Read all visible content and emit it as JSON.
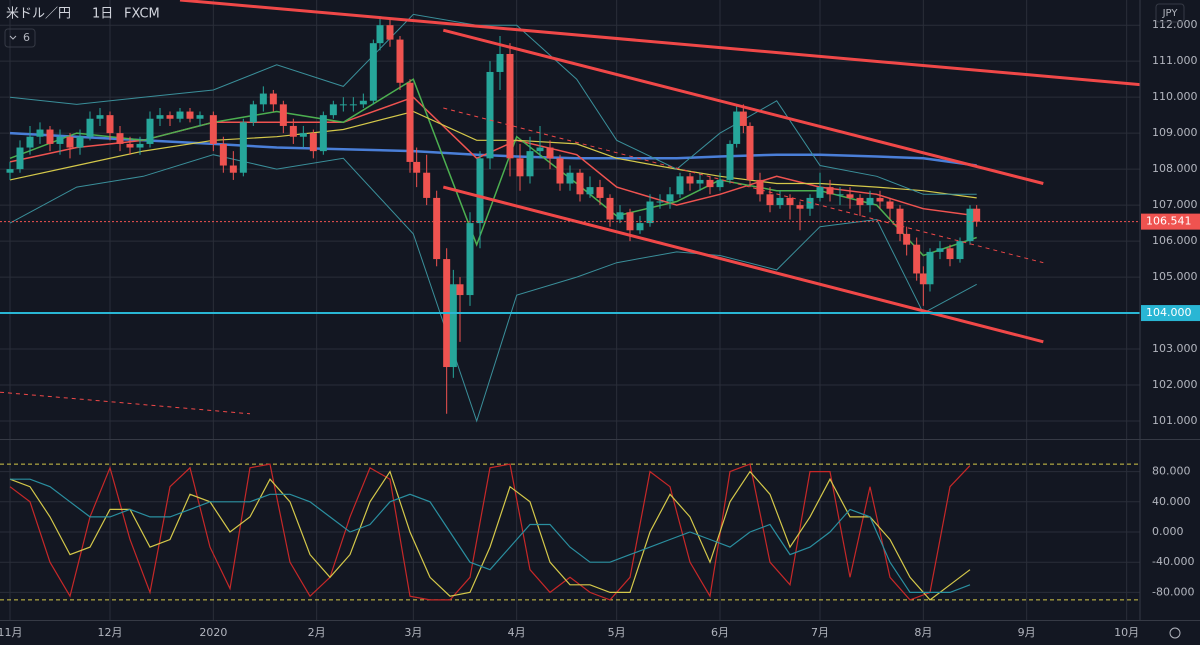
{
  "chart_data": {
    "type": "candlestick",
    "title": "米ドル／円",
    "interval": "1日",
    "source": "FXCM",
    "badge": "6",
    "currency": "JPY",
    "xlim": [
      -3,
      339
    ],
    "xticks": [
      {
        "value": 0,
        "label": "11月"
      },
      {
        "value": 30,
        "label": "12月"
      },
      {
        "value": 61,
        "label": "2020"
      },
      {
        "value": 92,
        "label": "2月"
      },
      {
        "value": 121,
        "label": "3月"
      },
      {
        "value": 152,
        "label": "4月"
      },
      {
        "value": 182,
        "label": "5月"
      },
      {
        "value": 213,
        "label": "6月"
      },
      {
        "value": 243,
        "label": "7月"
      },
      {
        "value": 274,
        "label": "8月"
      },
      {
        "value": 305,
        "label": "9月"
      },
      {
        "value": 335,
        "label": "10月"
      }
    ],
    "ylim": [
      100.5,
      112.7
    ],
    "yticks": [
      {
        "value": 101,
        "label": "101.000"
      },
      {
        "value": 102,
        "label": "102.000"
      },
      {
        "value": 103,
        "label": "103.000"
      },
      {
        "value": 104,
        "label": "104.000"
      },
      {
        "value": 105,
        "label": "105.000"
      },
      {
        "value": 106,
        "label": "106.000"
      },
      {
        "value": 107,
        "label": "107.000"
      },
      {
        "value": 108,
        "label": "108.000"
      },
      {
        "value": 109,
        "label": "109.000"
      },
      {
        "value": 110,
        "label": "110.000"
      },
      {
        "value": 111,
        "label": "111.000"
      },
      {
        "value": 112,
        "label": "112.000"
      }
    ],
    "grid": true,
    "up_color": "#26a69a",
    "down_color": "#ef5350",
    "candles": [
      [
        0,
        107.9,
        108.2,
        107.7,
        108.0
      ],
      [
        3,
        108.0,
        108.8,
        107.9,
        108.6
      ],
      [
        6,
        108.6,
        109.2,
        108.4,
        108.9
      ],
      [
        9,
        108.9,
        109.3,
        108.7,
        109.1
      ],
      [
        12,
        109.1,
        109.2,
        108.5,
        108.7
      ],
      [
        15,
        108.7,
        109.1,
        108.4,
        108.9
      ],
      [
        18,
        108.9,
        109.0,
        108.3,
        108.6
      ],
      [
        21,
        108.6,
        109.1,
        108.4,
        108.9
      ],
      [
        24,
        108.9,
        109.6,
        108.8,
        109.4
      ],
      [
        27,
        109.4,
        109.7,
        109.2,
        109.5
      ],
      [
        30,
        109.5,
        109.6,
        108.8,
        109.0
      ],
      [
        33,
        109.0,
        109.2,
        108.5,
        108.7
      ],
      [
        36,
        108.7,
        108.9,
        108.4,
        108.6
      ],
      [
        39,
        108.6,
        108.9,
        108.4,
        108.7
      ],
      [
        42,
        108.7,
        109.6,
        108.6,
        109.4
      ],
      [
        45,
        109.4,
        109.7,
        109.2,
        109.5
      ],
      [
        48,
        109.5,
        109.6,
        109.2,
        109.4
      ],
      [
        51,
        109.4,
        109.7,
        109.3,
        109.6
      ],
      [
        54,
        109.6,
        109.7,
        109.3,
        109.4
      ],
      [
        57,
        109.4,
        109.6,
        109.2,
        109.5
      ],
      [
        61,
        109.5,
        109.6,
        108.5,
        108.7
      ],
      [
        64,
        108.7,
        108.9,
        107.9,
        108.1
      ],
      [
        67,
        108.1,
        108.5,
        107.7,
        107.9
      ],
      [
        70,
        107.9,
        109.4,
        107.8,
        109.3
      ],
      [
        73,
        109.3,
        109.9,
        109.2,
        109.8
      ],
      [
        76,
        109.8,
        110.3,
        109.6,
        110.1
      ],
      [
        79,
        110.1,
        110.2,
        109.6,
        109.8
      ],
      [
        82,
        109.8,
        109.9,
        109.0,
        109.2
      ],
      [
        85,
        109.2,
        109.4,
        108.7,
        108.9
      ],
      [
        88,
        108.9,
        109.2,
        108.6,
        109.0
      ],
      [
        91,
        109.0,
        109.1,
        108.3,
        108.5
      ],
      [
        94,
        108.5,
        109.6,
        108.4,
        109.5
      ],
      [
        97,
        109.5,
        109.9,
        109.4,
        109.8
      ],
      [
        100,
        109.8,
        110.0,
        109.6,
        109.8
      ],
      [
        103,
        109.8,
        110.0,
        109.6,
        109.8
      ],
      [
        106,
        109.8,
        110.1,
        109.7,
        109.9
      ],
      [
        109,
        109.9,
        111.6,
        109.8,
        111.5
      ],
      [
        111,
        111.5,
        112.2,
        111.3,
        112.0
      ],
      [
        114,
        112.0,
        112.2,
        111.4,
        111.6
      ],
      [
        117,
        111.6,
        111.7,
        110.2,
        110.4
      ],
      [
        120,
        110.4,
        110.5,
        107.9,
        108.2
      ],
      [
        122,
        108.2,
        108.6,
        107.5,
        107.9
      ],
      [
        125,
        107.9,
        108.4,
        107.0,
        107.2
      ],
      [
        128,
        107.2,
        107.4,
        105.3,
        105.5
      ],
      [
        131,
        105.5,
        105.8,
        101.2,
        102.5
      ],
      [
        133,
        102.5,
        105.2,
        102.2,
        104.8
      ],
      [
        135,
        104.8,
        105.0,
        103.2,
        104.5
      ],
      [
        138,
        104.5,
        106.8,
        104.2,
        106.5
      ],
      [
        141,
        106.5,
        108.5,
        105.8,
        108.3
      ],
      [
        144,
        108.3,
        111.0,
        108.0,
        110.7
      ],
      [
        147,
        110.7,
        111.7,
        110.2,
        111.2
      ],
      [
        150,
        111.2,
        111.5,
        107.8,
        108.3
      ],
      [
        153,
        108.3,
        108.7,
        107.4,
        107.8
      ],
      [
        156,
        107.8,
        108.9,
        107.6,
        108.5
      ],
      [
        159,
        108.5,
        109.2,
        108.3,
        108.6
      ],
      [
        162,
        108.6,
        108.8,
        108.0,
        108.3
      ],
      [
        165,
        108.3,
        108.4,
        107.4,
        107.6
      ],
      [
        168,
        107.6,
        108.1,
        107.4,
        107.9
      ],
      [
        171,
        107.9,
        108.0,
        107.1,
        107.3
      ],
      [
        174,
        107.3,
        107.8,
        107.2,
        107.5
      ],
      [
        177,
        107.5,
        107.7,
        107.0,
        107.2
      ],
      [
        180,
        107.2,
        107.3,
        106.4,
        106.6
      ],
      [
        183,
        106.6,
        107.0,
        106.5,
        106.8
      ],
      [
        186,
        106.8,
        106.9,
        106.0,
        106.3
      ],
      [
        189,
        106.3,
        106.7,
        106.2,
        106.5
      ],
      [
        192,
        106.5,
        107.3,
        106.4,
        107.1
      ],
      [
        195,
        107.1,
        107.3,
        106.9,
        107.1
      ],
      [
        198,
        107.1,
        107.5,
        106.9,
        107.3
      ],
      [
        201,
        107.3,
        107.9,
        107.2,
        107.8
      ],
      [
        204,
        107.8,
        107.9,
        107.4,
        107.6
      ],
      [
        207,
        107.6,
        107.9,
        107.4,
        107.7
      ],
      [
        210,
        107.7,
        107.8,
        107.3,
        107.5
      ],
      [
        213,
        107.5,
        107.9,
        107.4,
        107.7
      ],
      [
        216,
        107.7,
        108.8,
        107.6,
        108.7
      ],
      [
        218,
        108.7,
        109.8,
        108.6,
        109.6
      ],
      [
        220,
        109.6,
        109.8,
        109.0,
        109.2
      ],
      [
        222,
        109.2,
        109.3,
        107.5,
        107.7
      ],
      [
        225,
        107.7,
        107.9,
        107.1,
        107.3
      ],
      [
        228,
        107.3,
        107.5,
        106.8,
        107.0
      ],
      [
        231,
        107.0,
        107.4,
        106.9,
        107.2
      ],
      [
        234,
        107.2,
        107.3,
        106.6,
        107.0
      ],
      [
        237,
        107.0,
        107.1,
        106.3,
        106.9
      ],
      [
        240,
        106.9,
        107.3,
        106.7,
        107.2
      ],
      [
        243,
        107.2,
        107.9,
        107.1,
        107.5
      ],
      [
        246,
        107.5,
        107.7,
        107.1,
        107.3
      ],
      [
        249,
        107.3,
        107.5,
        107.0,
        107.3
      ],
      [
        252,
        107.3,
        107.5,
        106.9,
        107.2
      ],
      [
        255,
        107.2,
        107.3,
        106.7,
        107.0
      ],
      [
        258,
        107.0,
        107.4,
        106.8,
        107.2
      ],
      [
        261,
        107.2,
        107.4,
        106.9,
        107.1
      ],
      [
        264,
        107.1,
        107.2,
        106.6,
        106.9
      ],
      [
        267,
        106.9,
        107.0,
        106.0,
        106.2
      ],
      [
        269,
        106.2,
        106.4,
        105.6,
        105.9
      ],
      [
        272,
        105.9,
        106.1,
        104.9,
        105.1
      ],
      [
        274,
        105.1,
        105.3,
        104.2,
        104.8
      ],
      [
        276,
        104.8,
        105.8,
        104.6,
        105.7
      ],
      [
        279,
        105.7,
        106.0,
        105.5,
        105.8
      ],
      [
        282,
        105.8,
        105.9,
        105.3,
        105.5
      ],
      [
        285,
        105.5,
        106.1,
        105.4,
        106.0
      ],
      [
        288,
        106.0,
        107.0,
        105.9,
        106.9
      ],
      [
        290,
        106.9,
        107.0,
        106.4,
        106.54
      ]
    ],
    "lines_x": [
      0,
      20,
      40,
      61,
      80,
      100,
      121,
      140,
      152,
      170,
      182,
      200,
      213,
      230,
      243,
      260,
      274,
      290
    ],
    "lines": [
      {
        "color": "#4a7fd8",
        "width": 2.5,
        "values": [
          109.0,
          108.9,
          108.8,
          108.7,
          108.6,
          108.55,
          108.5,
          108.4,
          108.35,
          108.3,
          108.3,
          108.3,
          108.35,
          108.4,
          108.4,
          108.35,
          108.3,
          108.1
        ]
      },
      {
        "color": "#ef5350",
        "width": 1.5,
        "values": [
          108.2,
          108.6,
          108.8,
          109.3,
          109.3,
          109.3,
          110.0,
          108.3,
          108.8,
          108.4,
          107.5,
          107.0,
          107.3,
          107.8,
          107.5,
          107.3,
          106.9,
          106.7
        ]
      },
      {
        "color": "#4caf50",
        "width": 1.5,
        "values": [
          108.3,
          109.0,
          108.8,
          109.3,
          109.6,
          109.3,
          110.5,
          105.9,
          108.9,
          107.6,
          106.7,
          107.1,
          107.7,
          107.4,
          107.4,
          107.0,
          105.6,
          106.1
        ]
      },
      {
        "color": "#d4c84a",
        "width": 1.2,
        "values": [
          107.7,
          108.1,
          108.5,
          108.8,
          108.9,
          109.1,
          109.6,
          108.8,
          108.8,
          108.7,
          108.3,
          108.0,
          107.8,
          107.6,
          107.6,
          107.5,
          107.4,
          107.2
        ]
      },
      {
        "color": "#3a8f9a",
        "width": 1,
        "values": [
          110.0,
          109.8,
          110.0,
          110.2,
          110.9,
          110.3,
          112.3,
          112.0,
          112.0,
          110.5,
          108.8,
          108.0,
          109.0,
          109.9,
          108.1,
          107.8,
          107.3,
          107.3
        ]
      },
      {
        "color": "#3a8f9a",
        "width": 1,
        "values": [
          106.5,
          107.5,
          107.8,
          108.4,
          108.0,
          108.3,
          106.2,
          101.0,
          104.5,
          105.0,
          105.4,
          105.7,
          105.6,
          105.2,
          106.4,
          106.6,
          104.0,
          104.8
        ]
      }
    ],
    "trendlines": [
      {
        "color": "#f04848",
        "width": 3,
        "x": [
          51,
          339
        ],
        "values": [
          112.7,
          110.35
        ]
      },
      {
        "color": "#f04848",
        "width": 3,
        "x": [
          130,
          310
        ],
        "values": [
          111.86,
          107.6
        ]
      },
      {
        "color": "#f04848",
        "width": 3,
        "x": [
          130,
          310
        ],
        "values": [
          107.5,
          103.2
        ]
      },
      {
        "color": "#f04848",
        "width": 1,
        "dashed": true,
        "x": [
          130,
          310
        ],
        "values": [
          109.7,
          105.4
        ]
      },
      {
        "color": "#f04848",
        "width": 1,
        "dashed": true,
        "x": [
          -3,
          72
        ],
        "values": [
          101.8,
          101.2
        ]
      }
    ],
    "hlines": [
      {
        "value": 104,
        "label": "104.000",
        "color": "#29b6d4",
        "width": 2
      },
      {
        "value": 106.541,
        "label": "106.541",
        "color": "#ef5350",
        "width": 1,
        "dashed": true
      }
    ],
    "oscillator": {
      "ylim": [
        -116.6,
        121.9
      ],
      "yticks": [
        {
          "value": -80,
          "label": "-80.000"
        },
        {
          "value": -40,
          "label": "-40.000"
        },
        {
          "value": 0,
          "label": "0.000"
        },
        {
          "value": 40,
          "label": "40.000"
        },
        {
          "value": 80,
          "label": "80.000"
        }
      ],
      "levels": [
        90,
        -90
      ],
      "level_color": "#d4c84a",
      "x": [
        0,
        6,
        12,
        18,
        24,
        30,
        36,
        42,
        48,
        54,
        60,
        66,
        72,
        78,
        84,
        90,
        96,
        102,
        108,
        114,
        120,
        126,
        132,
        138,
        144,
        150,
        156,
        162,
        168,
        174,
        180,
        186,
        192,
        198,
        204,
        210,
        216,
        222,
        228,
        234,
        240,
        246,
        252,
        258,
        264,
        270,
        276,
        282,
        288
      ],
      "series": [
        {
          "color": "#c62828",
          "values": [
            60,
            40,
            -40,
            -85,
            20,
            85,
            -10,
            -80,
            60,
            85,
            -20,
            -75,
            85,
            90,
            -40,
            -85,
            -60,
            20,
            85,
            70,
            -85,
            -90,
            -90,
            -60,
            85,
            90,
            -50,
            -80,
            -60,
            -80,
            -90,
            -60,
            80,
            60,
            -40,
            -85,
            80,
            90,
            -40,
            -70,
            80,
            80,
            -60,
            60,
            -60,
            -90,
            -80,
            60,
            88
          ]
        },
        {
          "color": "#d4c84a",
          "values": [
            70,
            60,
            20,
            -30,
            -20,
            30,
            30,
            -20,
            -10,
            50,
            40,
            0,
            20,
            70,
            40,
            -30,
            -60,
            -30,
            40,
            80,
            0,
            -60,
            -85,
            -80,
            -20,
            60,
            40,
            -40,
            -70,
            -70,
            -80,
            -80,
            0,
            50,
            20,
            -40,
            40,
            80,
            50,
            -20,
            20,
            70,
            20,
            20,
            -10,
            -60,
            -90,
            -70,
            -50
          ]
        },
        {
          "color": "#2a8fa0",
          "values": [
            70,
            70,
            60,
            40,
            20,
            20,
            30,
            20,
            20,
            30,
            40,
            40,
            40,
            50,
            50,
            40,
            20,
            0,
            10,
            40,
            50,
            40,
            0,
            -40,
            -50,
            -20,
            10,
            10,
            -20,
            -40,
            -40,
            -30,
            -20,
            -10,
            0,
            -10,
            -20,
            0,
            10,
            -30,
            -20,
            0,
            30,
            20,
            -40,
            -80,
            -80,
            -80,
            -70
          ]
        }
      ]
    }
  }
}
